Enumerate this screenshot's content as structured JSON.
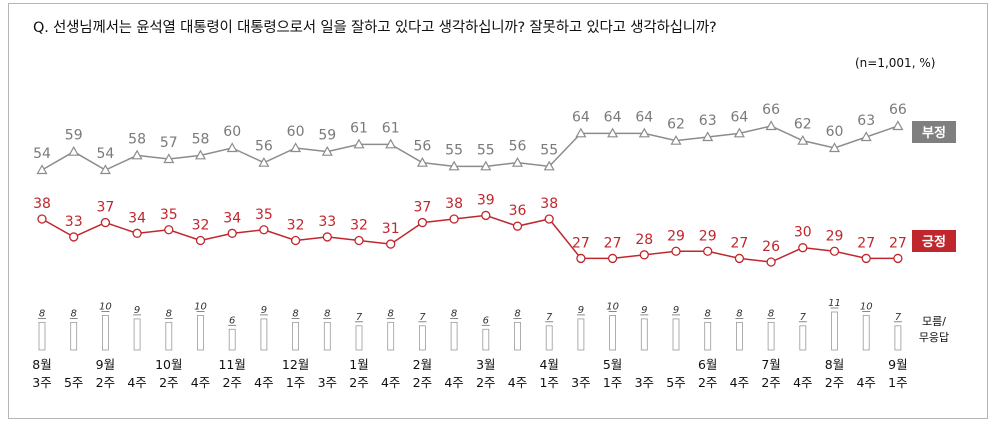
{
  "question": "Q. 선생님께서는 윤석열 대통령이 대통령으로서 일을 잘하고 있다고 생각하십니까? 잘못하고 있다고 생각하십니까?",
  "unit_note": "(n=1,001, %)",
  "colors": {
    "negative": "#8c8c8c",
    "negative_badge": "#7f7f7f",
    "positive": "#c0272d",
    "positive_badge": "#c0272d",
    "unknown_bar": "#d9d9d9"
  },
  "chart_data": {
    "type": "line",
    "x": [
      [
        "8월",
        "3주"
      ],
      [
        "",
        "5주"
      ],
      [
        "9월",
        "2주"
      ],
      [
        "",
        "4주"
      ],
      [
        "10월",
        "2주"
      ],
      [
        "",
        "4주"
      ],
      [
        "11월",
        "2주"
      ],
      [
        "",
        "4주"
      ],
      [
        "12월",
        "1주"
      ],
      [
        "",
        "3주"
      ],
      [
        "1월",
        "2주"
      ],
      [
        "",
        "4주"
      ],
      [
        "2월",
        "2주"
      ],
      [
        "",
        "4주"
      ],
      [
        "3월",
        "2주"
      ],
      [
        "",
        "4주"
      ],
      [
        "4월",
        "1주"
      ],
      [
        "",
        "3주"
      ],
      [
        "5월",
        "1주"
      ],
      [
        "",
        "3주"
      ],
      [
        "",
        "5주"
      ],
      [
        "6월",
        "2주"
      ],
      [
        "",
        "4주"
      ],
      [
        "7월",
        "2주"
      ],
      [
        "",
        "4주"
      ],
      [
        "8월",
        "2주"
      ],
      [
        "",
        "4주"
      ],
      [
        "9월",
        "1주"
      ]
    ],
    "series": [
      {
        "name": "부정",
        "values": [
          54,
          59,
          54,
          58,
          57,
          58,
          60,
          56,
          60,
          59,
          61,
          61,
          56,
          55,
          55,
          56,
          55,
          64,
          64,
          64,
          62,
          63,
          64,
          66,
          62,
          60,
          63,
          66
        ]
      },
      {
        "name": "긍정",
        "values": [
          38,
          33,
          37,
          34,
          35,
          32,
          34,
          35,
          32,
          33,
          32,
          31,
          37,
          38,
          39,
          36,
          38,
          27,
          27,
          28,
          29,
          29,
          27,
          26,
          30,
          29,
          27,
          27
        ]
      },
      {
        "name": "모름/무응답",
        "values": [
          8,
          8,
          10,
          9,
          8,
          10,
          6,
          9,
          8,
          8,
          7,
          8,
          7,
          8,
          6,
          8,
          7,
          9,
          10,
          9,
          9,
          8,
          8,
          8,
          7,
          11,
          10,
          7
        ]
      }
    ],
    "legend": [
      "부정",
      "긍정",
      "모름/무응답"
    ]
  }
}
